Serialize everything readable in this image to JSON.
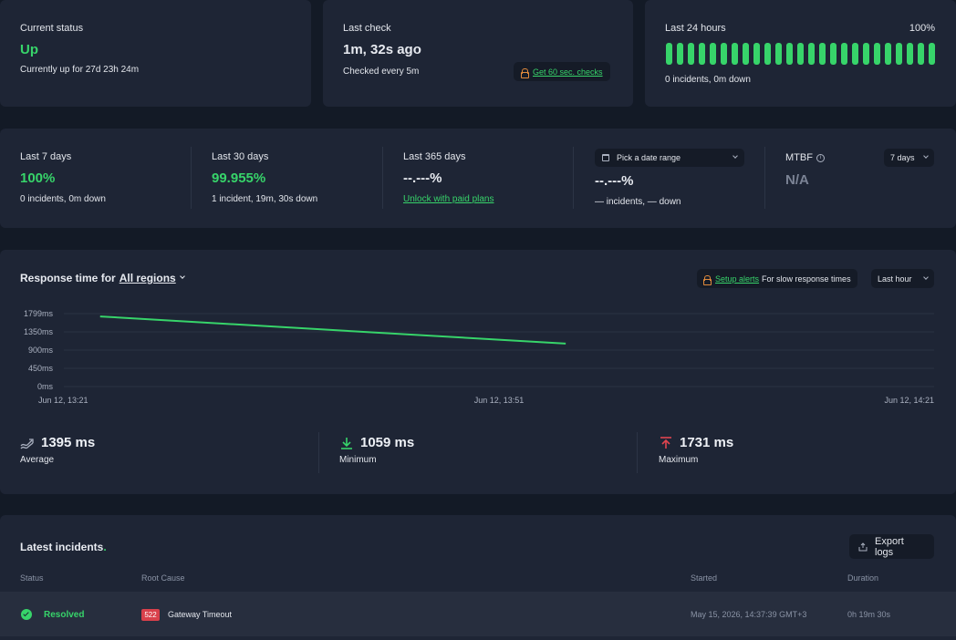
{
  "current_status": {
    "label": "Current status",
    "value": "Up",
    "detail": "Currently up for 27d 23h 24m"
  },
  "last_check": {
    "label": "Last check",
    "value": "1m, 32s ago",
    "detail": "Checked every 5m",
    "upgrade_link": "Get 60 sec. checks"
  },
  "last_24h": {
    "label": "Last 24 hours",
    "percent": "100%",
    "detail": "0 incidents, 0m down",
    "bars": 25
  },
  "periods": [
    {
      "label": "Last 7 days",
      "value": "100%",
      "detail": "0 incidents, 0m down"
    },
    {
      "label": "Last 30 days",
      "value": "99.955%",
      "detail": "1 incident, 19m, 30s down"
    },
    {
      "label": "Last 365 days",
      "value": "--.---%",
      "detail": "Unlock with paid plans"
    }
  ],
  "date_range": {
    "placeholder": "Pick a date range",
    "value": "--.---%",
    "detail": "— incidents, — down"
  },
  "mtbf": {
    "label": "MTBF",
    "value": "N/A",
    "select": "7 days"
  },
  "response": {
    "title_prefix": "Response time for",
    "region": "All regions",
    "setup_link": "Setup alerts",
    "setup_text": "For slow response times",
    "range_select": "Last hour",
    "average": {
      "value": "1395 ms",
      "label": "Average"
    },
    "minimum": {
      "value": "1059 ms",
      "label": "Minimum"
    },
    "maximum": {
      "value": "1731 ms",
      "label": "Maximum"
    }
  },
  "chart_data": {
    "type": "line",
    "y_ticks": [
      "1799ms",
      "1350ms",
      "900ms",
      "450ms",
      "0ms"
    ],
    "y_range": [
      0,
      1800
    ],
    "x_ticks": [
      "Jun 12, 13:21",
      "Jun 12, 13:51",
      "Jun 12, 14:21"
    ],
    "x_range_min": [
      0,
      60
    ],
    "series": [
      {
        "points": [
          [
            2.5,
            1731
          ],
          [
            34.6,
            1059
          ]
        ]
      }
    ],
    "colors": {
      "line": "#37d46a"
    }
  },
  "incidents": {
    "title": "Latest incidents",
    "title_dot": ".",
    "export": "Export logs",
    "headers": {
      "status": "Status",
      "cause": "Root Cause",
      "started": "Started",
      "duration": "Duration"
    },
    "rows": [
      {
        "status": "Resolved",
        "code": "522",
        "cause": "Gateway Timeout",
        "started": "May 15, 2026, 14:37:39 GMT+3",
        "duration": "0h 19m 30s"
      }
    ]
  }
}
